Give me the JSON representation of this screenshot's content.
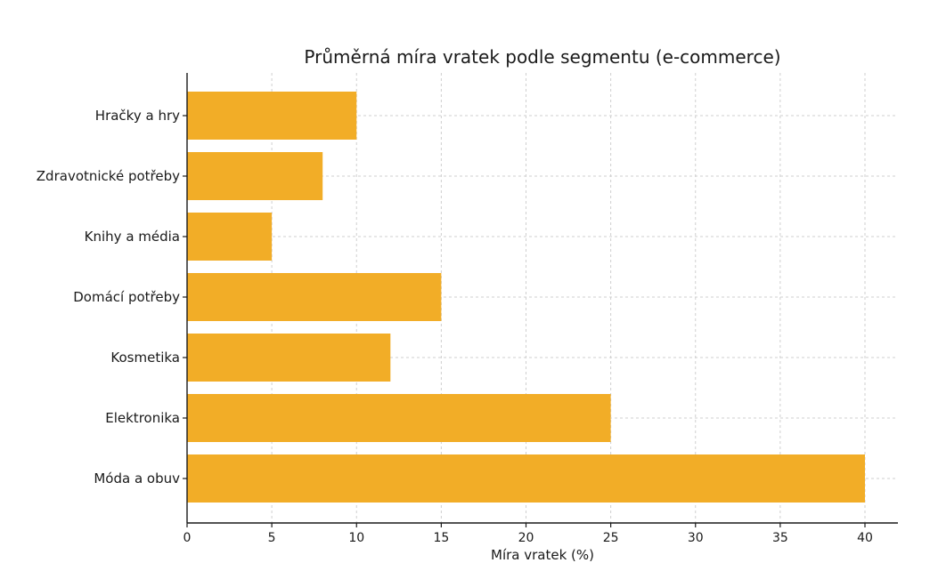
{
  "chart_data": {
    "type": "bar",
    "orientation": "horizontal",
    "title": "Průměrná míra vratek podle segmentu (e-commerce)",
    "xlabel": "Míra vratek (%)",
    "ylabel": "",
    "categories": [
      "Hračky a hry",
      "Zdravotnické potřeby",
      "Knihy a média",
      "Domácí potřeby",
      "Kosmetika",
      "Elektronika",
      "Móda a obuv"
    ],
    "values": [
      10,
      8,
      5,
      15,
      12,
      25,
      40
    ],
    "xlim": [
      0,
      42
    ],
    "xticks": [
      0,
      5,
      10,
      15,
      20,
      25,
      30,
      35,
      40
    ],
    "grid": true,
    "bar_color": "#F2AD27"
  }
}
